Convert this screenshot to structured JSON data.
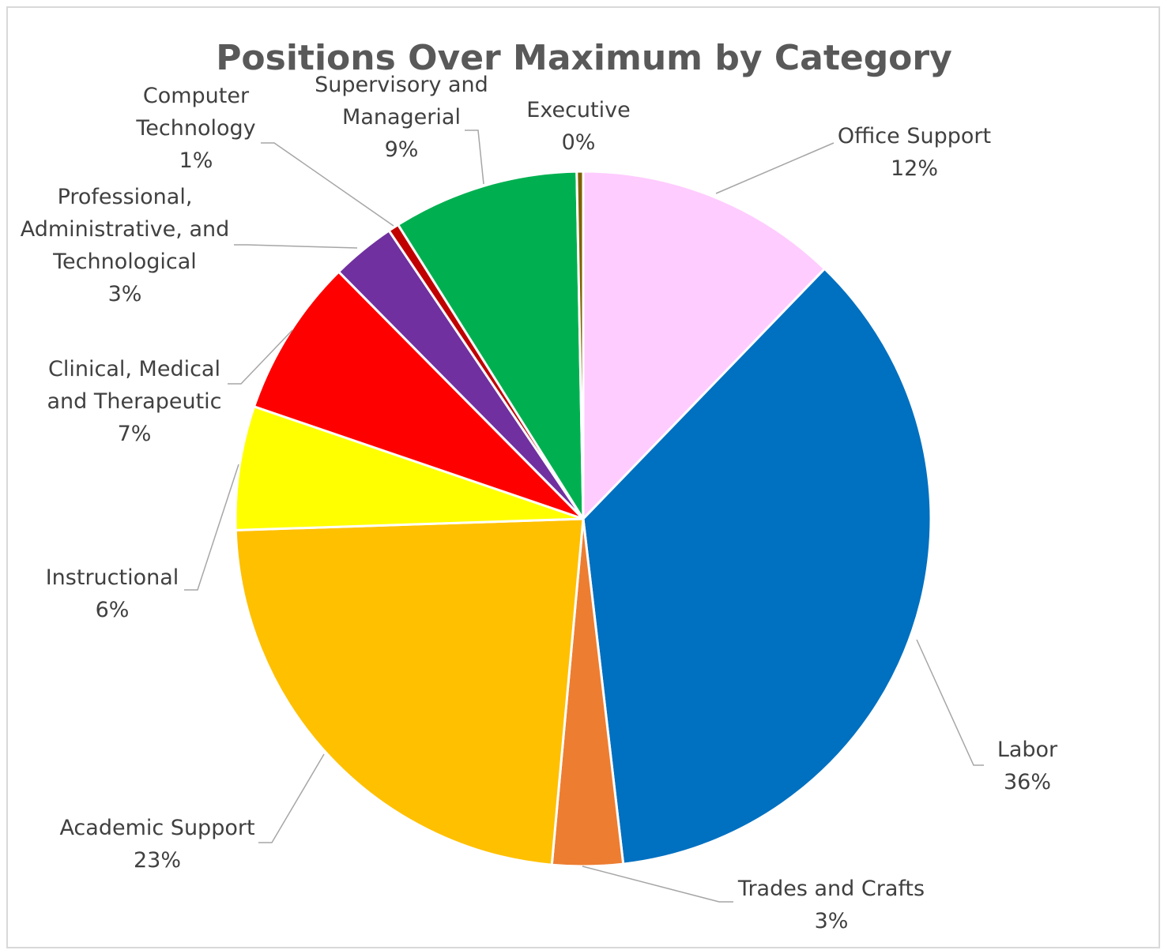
{
  "chart_data": {
    "type": "pie",
    "title": "Positions Over Maximum by Category",
    "slices": [
      {
        "label_lines": [
          "Office Support"
        ],
        "percent_label": "12%",
        "value": 12.3,
        "color": "#ffccff"
      },
      {
        "label_lines": [
          "Labor"
        ],
        "percent_label": "36%",
        "value": 36.2,
        "color": "#0070c0"
      },
      {
        "label_lines": [
          "Trades and Crafts"
        ],
        "percent_label": "3%",
        "value": 3.3,
        "color": "#ed7d31"
      },
      {
        "label_lines": [
          "Academic Support"
        ],
        "percent_label": "23%",
        "value": 23.2,
        "color": "#ffc000"
      },
      {
        "label_lines": [
          "Instructional"
        ],
        "percent_label": "6%",
        "value": 5.8,
        "color": "#ffff00"
      },
      {
        "label_lines": [
          "Clinical, Medical",
          "and Therapeutic"
        ],
        "percent_label": "7%",
        "value": 7.4,
        "color": "#ff0000"
      },
      {
        "label_lines": [
          "Professional,",
          "Administrative, and",
          "Technological"
        ],
        "percent_label": "3%",
        "value": 3.0,
        "color": "#7030a0"
      },
      {
        "label_lines": [
          "Computer",
          "Technology"
        ],
        "percent_label": "1%",
        "value": 0.5,
        "color": "#c00000"
      },
      {
        "label_lines": [
          "Supervisory and",
          "Managerial"
        ],
        "percent_label": "9%",
        "value": 8.7,
        "color": "#00b050"
      },
      {
        "label_lines": [
          "Executive"
        ],
        "percent_label": "0%",
        "value": 0.3,
        "color": "#806000"
      }
    ],
    "start": "top",
    "direction": "clockwise",
    "legend": "none",
    "data_labels": "outside-with-leader-lines"
  }
}
